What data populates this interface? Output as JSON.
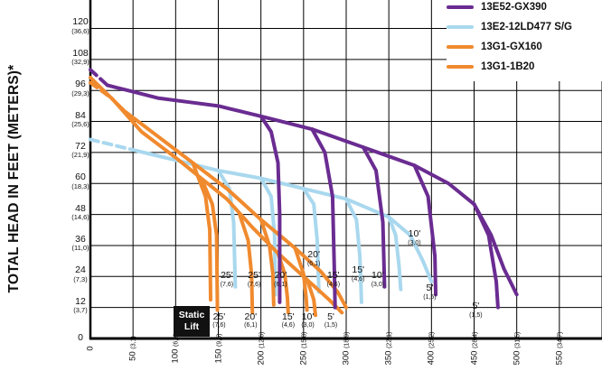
{
  "chart_data": {
    "type": "line",
    "ylabel": "TOTAL HEAD IN FEET (METERS)*",
    "x_ticks": [
      {
        "ft": "0",
        "m": ""
      },
      {
        "ft": "50",
        "m": "(3,1)"
      },
      {
        "ft": "100",
        "m": "(6,3)"
      },
      {
        "ft": "150",
        "m": "(9,5)"
      },
      {
        "ft": "200",
        "m": "(12,6)"
      },
      {
        "ft": "250",
        "m": "(15,8)"
      },
      {
        "ft": "300",
        "m": "(18,9)"
      },
      {
        "ft": "350",
        "m": "(22,1)"
      },
      {
        "ft": "400",
        "m": "(25,2)"
      },
      {
        "ft": "450",
        "m": "(28,4)"
      },
      {
        "ft": "500",
        "m": "(31,5)"
      },
      {
        "ft": "550",
        "m": "(34,7)"
      }
    ],
    "y_ticks": [
      {
        "value": 0,
        "ft": "0",
        "m": ""
      },
      {
        "value": 12,
        "ft": "12",
        "m": "(3,7)"
      },
      {
        "value": 24,
        "ft": "24",
        "m": "(7,3)"
      },
      {
        "value": 36,
        "ft": "36",
        "m": "(11,0)"
      },
      {
        "value": 48,
        "ft": "48",
        "m": "(14,6)"
      },
      {
        "value": 60,
        "ft": "60",
        "m": "(18,3)"
      },
      {
        "value": 72,
        "ft": "72",
        "m": "(21,9)"
      },
      {
        "value": 84,
        "ft": "84",
        "m": "(25,6)"
      },
      {
        "value": 96,
        "ft": "96",
        "m": "(29,3)"
      },
      {
        "value": 108,
        "ft": "108",
        "m": "(32,9)"
      },
      {
        "value": 120,
        "ft": "120",
        "m": "(36,6)"
      }
    ],
    "xlim": [
      0,
      600
    ],
    "ylim": [
      0,
      131
    ],
    "legend_position": "top-right",
    "series": [
      {
        "name": "13E52-GX390",
        "color": "#6a2c91",
        "main": [
          [
            0,
            104
          ],
          [
            20,
            98
          ],
          [
            80,
            93
          ],
          [
            150,
            90
          ],
          [
            200,
            86
          ],
          [
            260,
            81
          ],
          [
            320,
            74
          ],
          [
            380,
            67
          ],
          [
            420,
            60
          ],
          [
            450,
            52
          ],
          [
            470,
            40
          ],
          [
            485,
            27
          ],
          [
            500,
            17
          ]
        ],
        "dashed_start": true,
        "lift_branches": [
          {
            "x": [
              [
                200,
                86
              ],
              [
                212,
                80
              ],
              [
                220,
                68
              ],
              [
                222,
                48
              ],
              [
                222,
                14
              ]
            ]
          },
          {
            "x": [
              [
                260,
                81
              ],
              [
                275,
                72
              ],
              [
                284,
                55
              ],
              [
                286,
                28
              ],
              [
                287,
                12
              ]
            ]
          },
          {
            "x": [
              [
                320,
                74
              ],
              [
                335,
                65
              ],
              [
                343,
                45
              ],
              [
                345,
                20
              ]
            ]
          },
          {
            "x": [
              [
                380,
                67
              ],
              [
                396,
                55
              ],
              [
                404,
                32
              ],
              [
                405,
                17
              ]
            ]
          },
          {
            "x": [
              [
                450,
                52
              ],
              [
                467,
                40
              ],
              [
                476,
                22
              ],
              [
                478,
                12
              ]
            ]
          }
        ]
      },
      {
        "name": "13E2-12LD477 S/G",
        "color": "#a9d8ee",
        "main": [
          [
            0,
            77
          ],
          [
            50,
            73
          ],
          [
            100,
            69
          ],
          [
            150,
            65
          ],
          [
            200,
            62
          ],
          [
            250,
            58
          ],
          [
            300,
            54
          ],
          [
            350,
            47
          ],
          [
            375,
            40
          ],
          [
            390,
            30
          ],
          [
            400,
            22
          ]
        ],
        "dashed_start": true,
        "lift_branches": [
          {
            "x": [
              [
                150,
                65
              ],
              [
                163,
                58
              ],
              [
                168,
                45
              ],
              [
                170,
                20
              ]
            ]
          },
          {
            "x": [
              [
                200,
                62
              ],
              [
                212,
                55
              ],
              [
                216,
                40
              ],
              [
                217,
                17
              ]
            ]
          },
          {
            "x": [
              [
                250,
                58
              ],
              [
                262,
                52
              ],
              [
                266,
                38
              ],
              [
                268,
                18
              ]
            ]
          },
          {
            "x": [
              [
                300,
                54
              ],
              [
                312,
                46
              ],
              [
                316,
                32
              ],
              [
                318,
                14
              ]
            ]
          },
          {
            "x": [
              [
                350,
                47
              ],
              [
                358,
                40
              ],
              [
                362,
                28
              ],
              [
                364,
                19
              ]
            ]
          }
        ]
      },
      {
        "name": "13G1-GX160",
        "color": "#f08a2e",
        "main": [
          [
            0,
            99
          ],
          [
            25,
            93
          ],
          [
            60,
            80
          ],
          [
            100,
            70
          ],
          [
            130,
            62
          ],
          [
            160,
            54
          ],
          [
            190,
            43
          ],
          [
            220,
            33
          ],
          [
            250,
            24
          ],
          [
            280,
            15
          ],
          [
            295,
            10
          ]
        ],
        "dashed_start": true,
        "lift_branches": [
          {
            "x": [
              [
                130,
                62
              ],
              [
                143,
                52
              ],
              [
                148,
                40
              ],
              [
                149,
                11
              ]
            ]
          },
          {
            "x": [
              [
                175,
                48
              ],
              [
                185,
                38
              ],
              [
                189,
                25
              ],
              [
                190,
                10
              ]
            ]
          },
          {
            "x": [
              [
                220,
                33
              ],
              [
                228,
                25
              ],
              [
                231,
                16
              ],
              [
                232,
                10
              ]
            ]
          },
          {
            "x": [
              [
                255,
                22
              ],
              [
                262,
                15
              ],
              [
                264,
                9
              ]
            ]
          }
        ]
      },
      {
        "name": "13G1-1B20",
        "color": "#f08a2e",
        "main": [
          [
            0,
            101
          ],
          [
            40,
            88
          ],
          [
            80,
            78
          ],
          [
            120,
            68
          ],
          [
            160,
            58
          ],
          [
            200,
            46
          ],
          [
            240,
            35
          ],
          [
            270,
            26
          ],
          [
            290,
            18
          ],
          [
            300,
            12
          ]
        ],
        "dashed_start": false,
        "lift_branches": [
          {
            "x": [
              [
                120,
                68
              ],
              [
                135,
                55
              ],
              [
                140,
                42
              ],
              [
                141,
                15
              ]
            ]
          },
          {
            "x": [
              [
                200,
                46
              ],
              [
                210,
                36
              ],
              [
                214,
                25
              ],
              [
                215,
                13
              ]
            ]
          },
          {
            "x": [
              [
                240,
                35
              ],
              [
                250,
                25
              ],
              [
                253,
                16
              ],
              [
                254,
                11
              ]
            ]
          }
        ]
      }
    ],
    "annotations": [
      {
        "ft": "25'",
        "m": "(7,6)",
        "x": 160,
        "y": 22
      },
      {
        "ft": "25'",
        "m": "(7,6)",
        "x": 192,
        "y": 22
      },
      {
        "ft": "20'",
        "m": "(6,1)",
        "x": 223,
        "y": 22
      },
      {
        "ft": "20'",
        "m": "(6,1)",
        "x": 262,
        "y": 30
      },
      {
        "ft": "15'",
        "m": "(4,6)",
        "x": 285,
        "y": 22
      },
      {
        "ft": "15'",
        "m": "(4,6)",
        "x": 314,
        "y": 24
      },
      {
        "ft": "10'",
        "m": "(3,0)",
        "x": 337,
        "y": 22
      },
      {
        "ft": "10'",
        "m": "(3,0)",
        "x": 380,
        "y": 38
      },
      {
        "ft": "5'",
        "m": "(1,5)",
        "x": 398,
        "y": 17
      },
      {
        "ft": "5'",
        "m": "(1,5)",
        "x": 452,
        "y": 10
      },
      {
        "ft": "25'",
        "m": "(7,6)",
        "x": 151,
        "y": 6
      },
      {
        "ft": "20'",
        "m": "(6,1)",
        "x": 188,
        "y": 6
      },
      {
        "ft": "15'",
        "m": "(4,6)",
        "x": 232,
        "y": 6
      },
      {
        "ft": "10'",
        "m": "(3,0)",
        "x": 255,
        "y": 6
      },
      {
        "ft": "5'",
        "m": "(1,5)",
        "x": 282,
        "y": 6
      }
    ],
    "static_lift": [
      "Static",
      "Lift"
    ]
  }
}
